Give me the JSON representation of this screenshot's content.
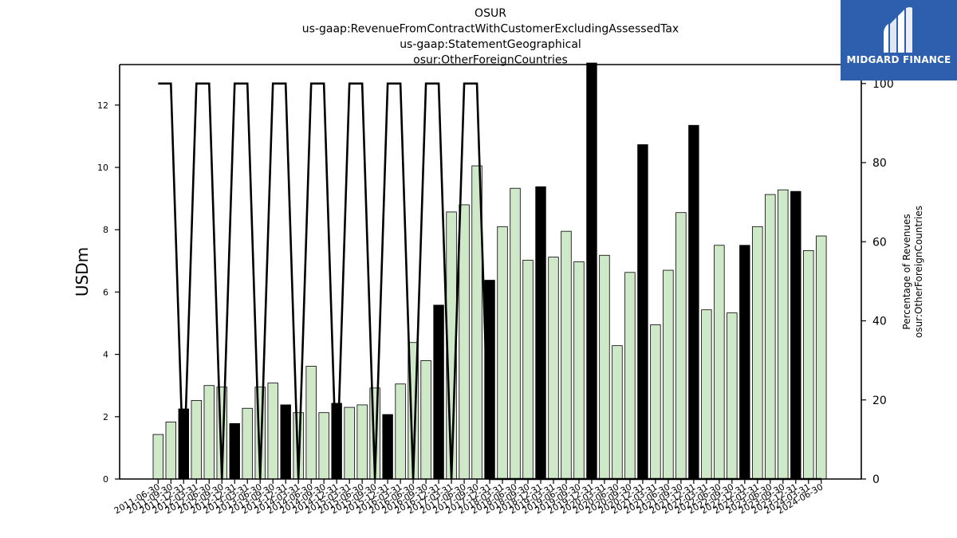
{
  "chart_data": {
    "type": "bar",
    "title_lines": [
      "OSUR",
      "us-gaap:RevenueFromContractWithCustomerExcludingAssessedTax",
      "us-gaap:StatementGeographical",
      "osur:OtherForeignCountries"
    ],
    "ylabel": "USDm",
    "y2label_lines": [
      "Percentage of Revenues",
      "osur:OtherForeignCountries"
    ],
    "ylim": [
      0,
      13.3
    ],
    "y2lim": [
      0,
      104.8
    ],
    "yticks": [
      0,
      2,
      4,
      6,
      8,
      10,
      12
    ],
    "y2ticks": [
      0,
      20,
      40,
      60,
      80,
      100
    ],
    "categories": [
      "2011-06-30",
      "2011-09-30",
      "2011-12-31",
      "2012-03-31",
      "2012-06-30",
      "2012-09-30",
      "2012-12-31",
      "2013-03-31",
      "2013-06-30",
      "2013-09-30",
      "2013-12-31",
      "2014-03-31",
      "2014-06-30",
      "2014-09-30",
      "2014-12-31",
      "2015-03-31",
      "2015-06-30",
      "2015-09-30",
      "2015-12-31",
      "2016-03-31",
      "2016-06-30",
      "2016-09-30",
      "2016-12-31",
      "2017-03-31",
      "2017-06-30",
      "2017-09-30",
      "2017-12-31",
      "2018-03-31",
      "2018-06-30",
      "2018-09-30",
      "2018-12-31",
      "2019-03-31",
      "2019-06-30",
      "2019-09-30",
      "2019-12-31",
      "2020-03-31",
      "2020-06-30",
      "2020-09-30",
      "2020-12-31",
      "2021-03-31",
      "2021-06-30",
      "2021-09-30",
      "2021-12-31",
      "2022-03-31",
      "2022-06-30",
      "2022-09-30",
      "2022-12-31",
      "2023-03-31",
      "2023-06-30",
      "2023-09-30",
      "2023-12-31",
      "2024-03-31",
      "2024-06-30"
    ],
    "xtick_labels": [
      "2011-06-30",
      "2011-09-30",
      "2011-12-31",
      "2012-03-31",
      "2012-06-30",
      "2012-09-30",
      "2012-12-31",
      "2013-03-31",
      "2013-06-30",
      "2013-09-30",
      "2013-12-31",
      "2014-03-31",
      "2014-06-30",
      "2014-09-30",
      "2014-12-31",
      "2015-03-31",
      "2015-06-30",
      "2015-09-30",
      "2015-12-31",
      "2016-03-31",
      "2016-06-30",
      "2016-09-30",
      "2016-12-31",
      "2017-03-31",
      "2017-06-30",
      "2017-09-30",
      "2017-12-31",
      "2018-03-31",
      "2018-06-30",
      "2018-09-30",
      "2018-12-31",
      "2019-03-31",
      "2019-06-30",
      "2019-09-30",
      "2019-12-31",
      "2020-03-31",
      "2020-06-30",
      "2020-09-30",
      "2020-12-31",
      "2021-03-31",
      "2021-06-30",
      "2021-09-30",
      "2021-12-31",
      "2022-03-31",
      "2022-06-30",
      "2022-09-30",
      "2022-12-31",
      "2023-03-31",
      "2023-06-30",
      "2023-09-30",
      "2023-12-31",
      "2024-03-31",
      "2024-06-30"
    ],
    "values": [
      1.43,
      1.83,
      2.25,
      2.52,
      3.0,
      2.95,
      1.78,
      2.27,
      2.95,
      3.08,
      2.38,
      2.13,
      3.62,
      2.13,
      2.43,
      2.3,
      2.38,
      2.92,
      2.07,
      3.05,
      4.38,
      3.8,
      5.58,
      8.57,
      8.8,
      10.05,
      6.38,
      8.1,
      9.33,
      7.02,
      9.38,
      7.12,
      7.95,
      6.97,
      13.35,
      7.18,
      4.28,
      6.63,
      10.73,
      4.95,
      6.7,
      8.55,
      11.35,
      5.43,
      7.5,
      5.33,
      7.5,
      8.1,
      9.13,
      9.28,
      9.23,
      7.33,
      7.8
    ],
    "bar_is_fiscal_year_end": [
      false,
      false,
      true,
      false,
      false,
      false,
      true,
      false,
      false,
      false,
      true,
      false,
      false,
      false,
      true,
      false,
      false,
      false,
      true,
      false,
      false,
      false,
      true,
      false,
      false,
      false,
      true,
      false,
      false,
      false,
      true,
      false,
      false,
      false,
      true,
      false,
      false,
      false,
      true,
      false,
      false,
      false,
      true,
      false,
      false,
      false,
      true,
      false,
      false,
      false,
      true,
      false,
      false
    ],
    "pct_values": [
      100,
      100,
      0,
      100,
      100,
      0,
      100,
      100,
      0,
      100,
      100,
      0,
      100,
      100,
      0,
      100,
      100,
      0,
      100,
      100,
      0,
      100,
      100,
      0,
      100,
      100,
      0,
      0,
      0,
      0,
      0,
      0,
      0,
      0,
      0,
      0,
      0,
      0,
      0,
      0,
      0,
      0,
      0,
      0,
      0,
      0,
      0,
      0,
      0,
      0,
      0,
      0,
      0
    ],
    "colors": {
      "quarter_bar": "#cfe8c8",
      "year_bar": "#000000",
      "line": "#000000"
    }
  },
  "logo": {
    "text": "MIDGARD FINANCE",
    "background": "#2d5fae"
  }
}
